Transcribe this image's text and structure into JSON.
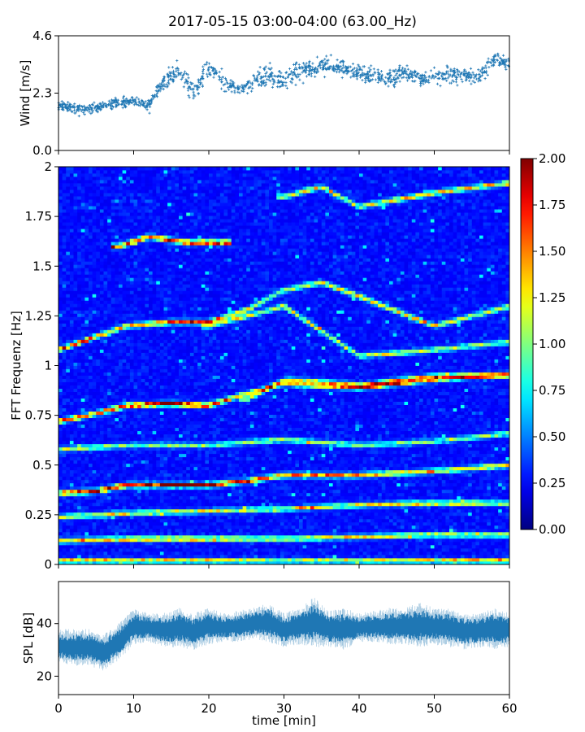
{
  "figure": {
    "title": "2017-05-15 03:00-04:00 (63.00_Hz)"
  },
  "chart_data": [
    {
      "type": "scatter",
      "panel": "wind",
      "ylabel": "Wind [m/s]",
      "xlim": [
        0,
        60
      ],
      "ylim": [
        0,
        4.6
      ],
      "yticks": [
        0.0,
        2.3,
        4.6
      ],
      "ytick_labels": [
        "0.0",
        "2.3",
        "4.6"
      ],
      "xticks": [
        0,
        10,
        20,
        30,
        40,
        50,
        60
      ],
      "x_ticklabels_visible": false,
      "marker": "+",
      "color": "#1f77b4",
      "series": [
        {
          "x": [
            0,
            2,
            4,
            6,
            8,
            10,
            12,
            14,
            16,
            18,
            20,
            22,
            24,
            26,
            28,
            30,
            32,
            34,
            36,
            38,
            40,
            42,
            44,
            46,
            48,
            50,
            52,
            54,
            56,
            58,
            60
          ],
          "y": [
            1.8,
            1.7,
            1.6,
            1.8,
            1.9,
            2.0,
            1.8,
            2.8,
            3.1,
            2.4,
            3.2,
            2.8,
            2.4,
            2.8,
            3.0,
            2.8,
            3.2,
            3.3,
            3.4,
            3.3,
            3.1,
            3.0,
            2.9,
            3.1,
            2.9,
            3.0,
            3.0,
            3.0,
            3.0,
            3.7,
            3.5
          ],
          "spread": [
            0.3,
            0.3,
            0.3,
            0.3,
            0.3,
            0.3,
            0.3,
            0.5,
            0.6,
            0.6,
            0.6,
            0.5,
            0.4,
            0.5,
            0.6,
            0.6,
            0.6,
            0.6,
            0.5,
            0.4,
            0.5,
            0.5,
            0.5,
            0.5,
            0.5,
            0.5,
            0.5,
            0.5,
            0.5,
            0.5,
            0.5
          ]
        }
      ]
    },
    {
      "type": "heatmap",
      "panel": "spectrogram",
      "ylabel": "FFT Frequenz [Hz]",
      "xlim": [
        0,
        60
      ],
      "ylim": [
        0,
        2
      ],
      "yticks": [
        0,
        0.25,
        0.5,
        0.75,
        1,
        1.25,
        1.5,
        1.75,
        2
      ],
      "ytick_labels": [
        "0",
        "0.25",
        "0.5",
        "0.75",
        "1",
        "1.25",
        "1.5",
        "1.75",
        "2"
      ],
      "xticks": [
        0,
        10,
        20,
        30,
        40,
        50,
        60
      ],
      "x_ticklabels_visible": false,
      "colormap": "jet",
      "colorbar": {
        "vmin": 0.0,
        "vmax": 2.0,
        "ticks": [
          0.0,
          0.25,
          0.5,
          0.75,
          1.0,
          1.25,
          1.5,
          1.75,
          2.0
        ],
        "tick_labels": [
          "0.00",
          "0.25",
          "0.50",
          "0.75",
          "1.00",
          "1.25",
          "1.50",
          "1.75",
          "2.00"
        ]
      },
      "background_level": 0.22,
      "ridges": [
        {
          "t": [
            0,
            5,
            9,
            15,
            20,
            25,
            30,
            40,
            50,
            60
          ],
          "f": [
            0.36,
            0.37,
            0.4,
            0.4,
            0.4,
            0.42,
            0.45,
            0.45,
            0.47,
            0.5
          ],
          "amp": [
            1.6,
            1.7,
            1.9,
            1.8,
            1.9,
            1.5,
            1.3,
            1.3,
            1.2,
            1.2
          ]
        },
        {
          "t": [
            0,
            5,
            9,
            15,
            20,
            25,
            30,
            40,
            50,
            60
          ],
          "f": [
            0.72,
            0.76,
            0.8,
            0.81,
            0.8,
            0.86,
            0.91,
            0.89,
            0.93,
            0.96
          ],
          "amp": [
            1.5,
            1.4,
            1.8,
            1.9,
            1.8,
            1.2,
            1.0,
            1.3,
            1.2,
            1.0
          ]
        },
        {
          "t": [
            0,
            9,
            15,
            20,
            25,
            30,
            35,
            40,
            50,
            60
          ],
          "f": [
            1.08,
            1.2,
            1.22,
            1.22,
            1.28,
            1.38,
            1.42,
            1.35,
            1.2,
            1.3
          ],
          "amp": [
            1.5,
            1.3,
            1.5,
            1.4,
            1.0,
            1.0,
            1.2,
            1.1,
            1.1,
            1.0
          ]
        },
        {
          "t": [
            8,
            12,
            17,
            22
          ],
          "f": [
            1.6,
            1.65,
            1.62,
            1.62
          ],
          "amp": [
            1.6,
            1.5,
            1.8,
            1.7
          ]
        },
        {
          "t": [
            0,
            10,
            20,
            30,
            40,
            50,
            60
          ],
          "f": [
            0.12,
            0.13,
            0.13,
            0.13,
            0.14,
            0.15,
            0.15
          ],
          "amp": [
            1.2,
            1.3,
            1.3,
            1.1,
            1.1,
            1.0,
            1.0
          ]
        },
        {
          "t": [
            0,
            10,
            20,
            30,
            40,
            50,
            60
          ],
          "f": [
            0.24,
            0.26,
            0.27,
            0.28,
            0.3,
            0.31,
            0.31
          ],
          "amp": [
            1.0,
            1.1,
            1.0,
            1.0,
            1.1,
            1.2,
            1.0
          ]
        },
        {
          "t": [
            0,
            10,
            20,
            30,
            40,
            50,
            60
          ],
          "f": [
            0.58,
            0.6,
            0.6,
            0.63,
            0.6,
            0.62,
            0.66
          ],
          "amp": [
            1.0,
            0.8,
            0.8,
            0.9,
            0.8,
            0.8,
            0.8
          ]
        },
        {
          "t": [
            25,
            30,
            35,
            40,
            50,
            60
          ],
          "f": [
            0.83,
            0.93,
            0.92,
            0.9,
            0.95,
            0.95
          ],
          "amp": [
            0.9,
            0.9,
            1.0,
            1.2,
            1.2,
            1.0
          ]
        },
        {
          "t": [
            20,
            25,
            30,
            40,
            50,
            60
          ],
          "f": [
            1.2,
            1.25,
            1.3,
            1.05,
            1.08,
            1.12
          ],
          "amp": [
            0.9,
            1.0,
            1.0,
            1.0,
            1.0,
            0.8
          ]
        },
        {
          "t": [
            30,
            35,
            40,
            50,
            60
          ],
          "f": [
            1.85,
            1.9,
            1.8,
            1.87,
            1.92
          ],
          "amp": [
            1.0,
            1.1,
            1.0,
            1.2,
            1.0
          ]
        },
        {
          "t": [
            0,
            10,
            20,
            30,
            40,
            50,
            60
          ],
          "f": [
            0.02,
            0.02,
            0.02,
            0.02,
            0.02,
            0.02,
            0.02
          ],
          "amp": [
            1.2,
            1.3,
            1.1,
            1.0,
            1.1,
            1.1,
            1.4
          ]
        }
      ]
    },
    {
      "type": "area",
      "panel": "spl",
      "ylabel": "SPL [dB]",
      "xlabel": "time [min]",
      "xlim": [
        0,
        60
      ],
      "ylim": [
        13,
        56
      ],
      "yticks": [
        20,
        40
      ],
      "ytick_labels": [
        "20",
        "40"
      ],
      "xticks": [
        0,
        10,
        20,
        30,
        40,
        50,
        60
      ],
      "xtick_labels": [
        "0",
        "10",
        "20",
        "30",
        "40",
        "50",
        "60"
      ],
      "color": "#1f77b4",
      "series": [
        {
          "x": [
            0,
            2,
            4,
            6,
            8,
            10,
            12,
            14,
            16,
            18,
            20,
            22,
            24,
            26,
            28,
            30,
            32,
            34,
            36,
            38,
            40,
            42,
            44,
            46,
            48,
            50,
            52,
            54,
            56,
            58,
            60
          ],
          "lower": [
            25,
            24,
            24,
            22,
            26,
            32,
            33,
            31,
            31,
            30,
            32,
            33,
            33,
            34,
            33,
            31,
            32,
            31,
            31,
            30,
            33,
            33,
            32,
            32,
            31,
            32,
            31,
            30,
            31,
            30,
            31
          ],
          "upper": [
            38,
            38,
            38,
            36,
            40,
            46,
            44,
            44,
            46,
            44,
            46,
            44,
            45,
            46,
            48,
            44,
            46,
            50,
            45,
            46,
            44,
            45,
            46,
            46,
            48,
            46,
            46,
            44,
            44,
            46,
            44
          ]
        }
      ]
    }
  ]
}
